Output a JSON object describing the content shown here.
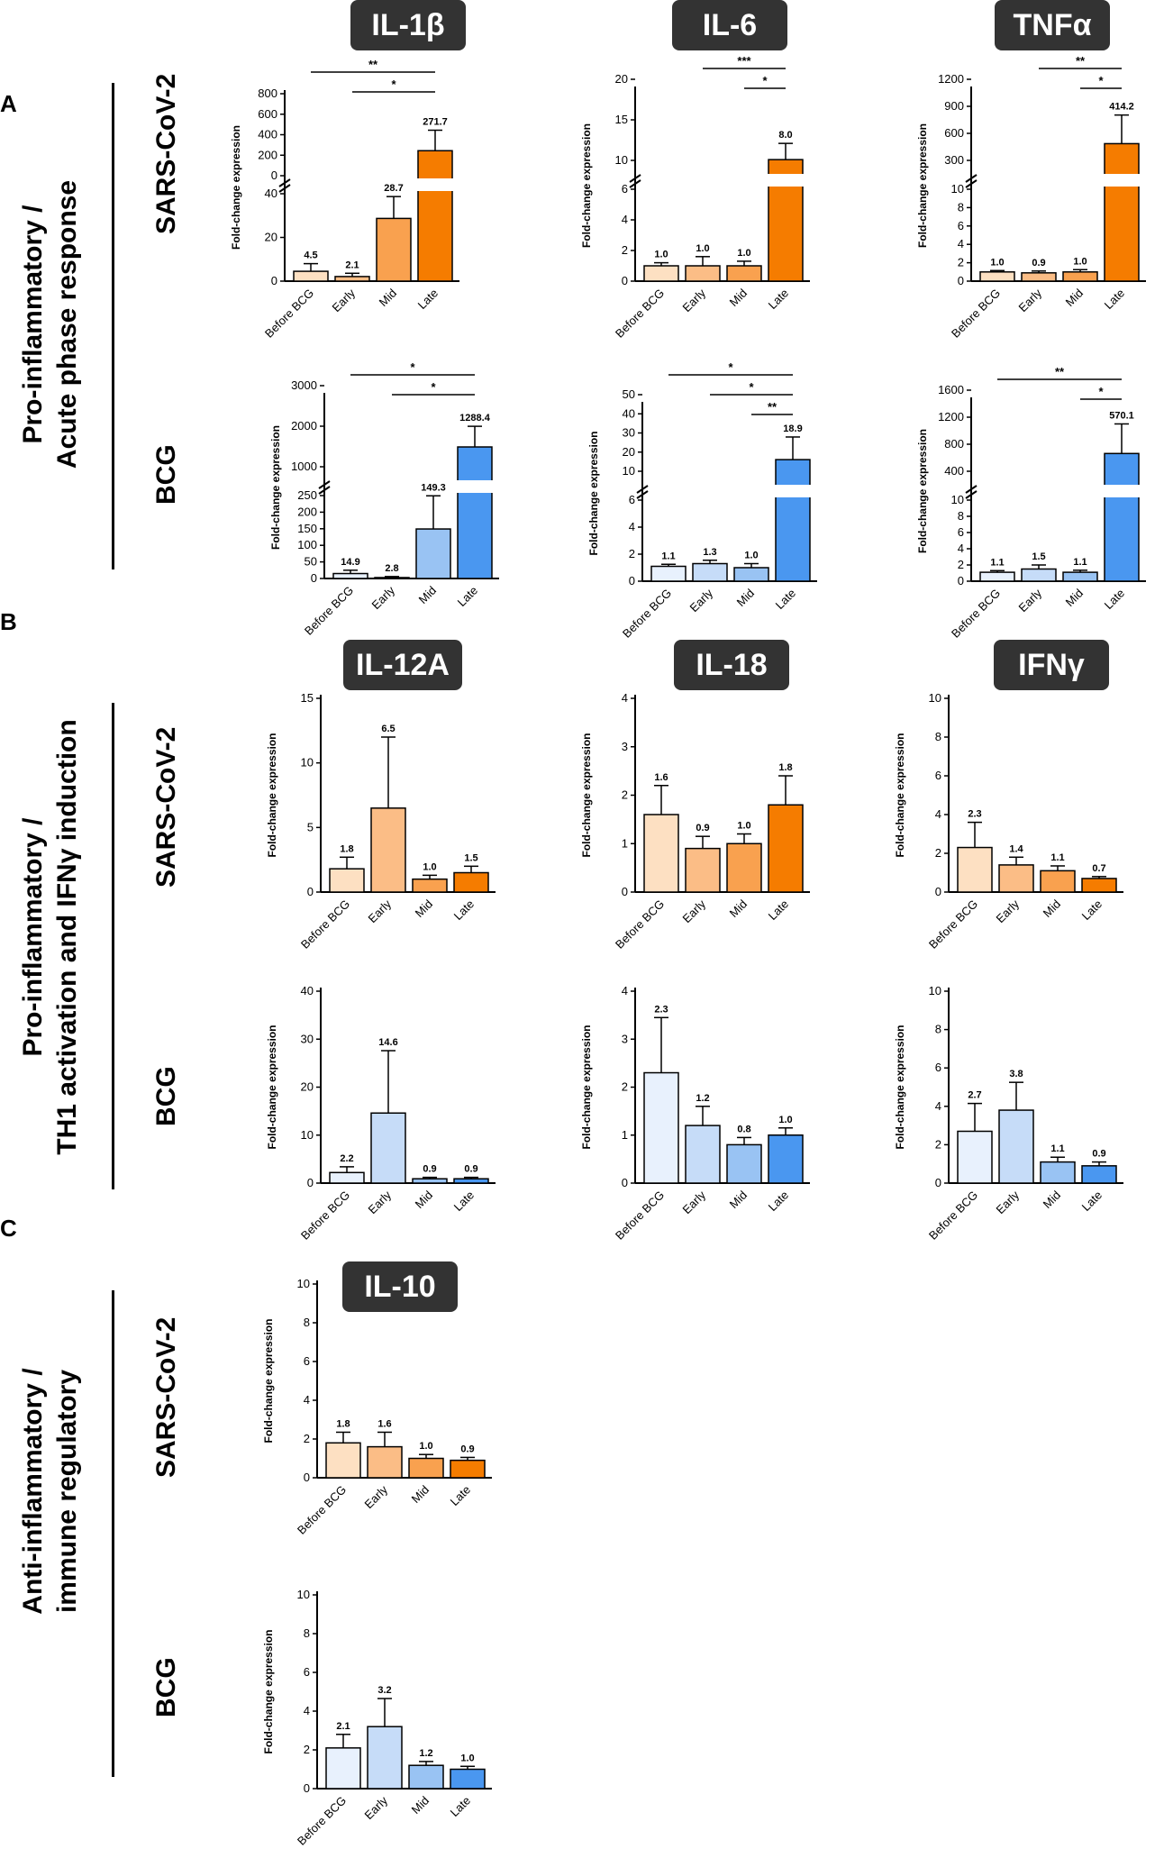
{
  "sections": [
    {
      "letter": "A",
      "group_lines": [
        "Pro-inflammatory /",
        "Acute phase response"
      ]
    },
    {
      "letter": "B",
      "group_lines": [
        "Pro-inflammatory /",
        "TH1 activation and IFNγ induction"
      ]
    },
    {
      "letter": "C",
      "group_lines": [
        "Anti-inflammatory  /",
        "immune regulatory"
      ]
    }
  ],
  "rows": [
    "SARS-CoV-2",
    "BCG",
    "SARS-CoV-2",
    "BCG",
    "SARS-CoV-2",
    "BCG"
  ],
  "cytokines": [
    "IL-1β",
    "IL-6",
    "TNFα",
    "IL-12A",
    "IL-18",
    "IFNγ",
    "IL-10"
  ],
  "colors": {
    "sars": [
      "#fde0c2",
      "#fbbd86",
      "#f9a14f",
      "#f57c00"
    ],
    "bcg": [
      "#e8f1fd",
      "#c6dcf8",
      "#99c3f3",
      "#4a97f0"
    ]
  },
  "chart_data": [
    {
      "type": "bar",
      "id": "il1b-sars",
      "cytokine": "IL-1β",
      "title": "",
      "stimulus": "SARS-CoV-2",
      "ylabel": "Fold-change expression",
      "categories": [
        "Before BCG",
        "Early",
        "Mid",
        "Late"
      ],
      "values": [
        4.5,
        2.1,
        28.7,
        271.7
      ],
      "errors": [
        3.5,
        1.5,
        10,
        190
      ],
      "labels": [
        "4.5",
        "2.1",
        "28.7",
        "271.7"
      ],
      "axis_break": {
        "lower": [
          0,
          40
        ],
        "upper": [
          0,
          800
        ]
      },
      "yticks_lower": [
        "0",
        "20",
        "40"
      ],
      "yticks_upper": [
        "0",
        "200",
        "400",
        "600",
        "800"
      ],
      "significance": [
        {
          "from": "Before BCG",
          "to": "Late",
          "label": "**"
        },
        {
          "from": "Early",
          "to": "Late",
          "label": "*"
        }
      ]
    },
    {
      "type": "bar",
      "id": "il6-sars",
      "cytokine": "IL-6",
      "title": "",
      "stimulus": "SARS-CoV-2",
      "ylabel": "Fold-change expression",
      "categories": [
        "Before BCG",
        "Early",
        "Mid",
        "Late"
      ],
      "values": [
        1.0,
        1.0,
        1.0,
        8.0
      ],
      "errors": [
        0.2,
        0.6,
        0.3,
        2.8
      ],
      "labels": [
        "1.0",
        "1.0",
        "1.0",
        "8.0"
      ],
      "axis_break": {
        "lower": [
          0,
          6
        ],
        "upper": [
          0,
          20
        ]
      },
      "yticks_lower": [
        "0",
        "2",
        "4",
        "6"
      ],
      "yticks_upper": [
        "10",
        "15",
        "20"
      ],
      "significance": [
        {
          "from": "Early",
          "to": "Late",
          "label": "***"
        },
        {
          "from": "Mid",
          "to": "Late",
          "label": "*"
        }
      ]
    },
    {
      "type": "bar",
      "id": "tnfa-sars",
      "cytokine": "TNFα",
      "title": "",
      "stimulus": "SARS-CoV-2",
      "ylabel": "Fold-change expression",
      "categories": [
        "Before BCG",
        "Early",
        "Mid",
        "Late"
      ],
      "values": [
        1.0,
        0.9,
        1.0,
        414.2
      ],
      "errors": [
        0.15,
        0.2,
        0.25,
        420
      ],
      "labels": [
        "1.0",
        "0.9",
        "1.0",
        "414.2"
      ],
      "axis_break": {
        "lower": [
          0,
          10
        ],
        "upper": [
          0,
          1200
        ]
      },
      "yticks_lower": [
        "0",
        "2",
        "4",
        "6",
        "8",
        "10"
      ],
      "yticks_upper": [
        "300",
        "600",
        "900",
        "1200"
      ],
      "significance": [
        {
          "from": "Early",
          "to": "Late",
          "label": "**"
        },
        {
          "from": "Mid",
          "to": "Late",
          "label": "*"
        }
      ]
    },
    {
      "type": "bar",
      "id": "il1b-bcg",
      "cytokine": "IL-1β",
      "title": "",
      "stimulus": "BCG",
      "ylabel": "Fold-change expression",
      "categories": [
        "Before BCG",
        "Early",
        "Mid",
        "Late"
      ],
      "values": [
        14.9,
        2.8,
        149.3,
        1288.4
      ],
      "errors": [
        10,
        3,
        100,
        700
      ],
      "labels": [
        "14.9",
        "2.8",
        "149.3",
        "1288.4"
      ],
      "axis_break": {
        "lower": [
          0,
          250
        ],
        "upper": [
          0,
          3000
        ]
      },
      "yticks_lower": [
        "0",
        "50",
        "100",
        "150",
        "200",
        "250"
      ],
      "yticks_upper": [
        "1000",
        "2000",
        "3000"
      ],
      "significance": [
        {
          "from": "Before BCG",
          "to": "Late",
          "label": "*"
        },
        {
          "from": "Early",
          "to": "Late",
          "label": "*"
        }
      ]
    },
    {
      "type": "bar",
      "id": "il6-bcg",
      "cytokine": "IL-6",
      "title": "",
      "stimulus": "BCG",
      "ylabel": "Fold-change expression",
      "categories": [
        "Before BCG",
        "Early",
        "Mid",
        "Late"
      ],
      "values": [
        1.1,
        1.3,
        1.0,
        18.9
      ],
      "errors": [
        0.15,
        0.25,
        0.3,
        13
      ],
      "labels": [
        "1.1",
        "1.3",
        "1.0",
        "18.9"
      ],
      "axis_break": {
        "lower": [
          0,
          6
        ],
        "upper": [
          0,
          50
        ]
      },
      "yticks_lower": [
        "0",
        "2",
        "4",
        "6"
      ],
      "yticks_upper": [
        "10",
        "20",
        "30",
        "40",
        "50"
      ],
      "significance": [
        {
          "from": "Before BCG",
          "to": "Late",
          "label": "*"
        },
        {
          "from": "Early",
          "to": "Late",
          "label": "*"
        },
        {
          "from": "Mid",
          "to": "Late",
          "label": "**"
        }
      ]
    },
    {
      "type": "bar",
      "id": "tnfa-bcg",
      "cytokine": "TNFα",
      "title": "",
      "stimulus": "BCG",
      "ylabel": "Fold-change expression",
      "categories": [
        "Before BCG",
        "Early",
        "Mid",
        "Late"
      ],
      "values": [
        1.1,
        1.5,
        1.1,
        570.1
      ],
      "errors": [
        0.2,
        0.5,
        0.25,
        580
      ],
      "labels": [
        "1.1",
        "1.5",
        "1.1",
        "570.1"
      ],
      "axis_break": {
        "lower": [
          0,
          10
        ],
        "upper": [
          0,
          1600
        ]
      },
      "yticks_lower": [
        "0",
        "2",
        "4",
        "6",
        "8",
        "10"
      ],
      "yticks_upper": [
        "400",
        "800",
        "1200",
        "1600"
      ],
      "significance": [
        {
          "from": "Before BCG",
          "to": "Late",
          "label": "**"
        },
        {
          "from": "Mid",
          "to": "Late",
          "label": "*"
        }
      ]
    },
    {
      "type": "bar",
      "id": "il12a-sars",
      "cytokine": "IL-12A",
      "title": "",
      "stimulus": "SARS-CoV-2",
      "ylabel": "Fold-change expression",
      "categories": [
        "Before BCG",
        "Early",
        "Mid",
        "Late"
      ],
      "values": [
        1.8,
        6.5,
        1.0,
        1.5
      ],
      "errors": [
        0.9,
        5.5,
        0.3,
        0.5
      ],
      "labels": [
        "1.8",
        "6.5",
        "1.0",
        "1.5"
      ],
      "ylim": [
        0,
        15
      ],
      "yticks": [
        "0",
        "5",
        "10",
        "15"
      ],
      "significance": []
    },
    {
      "type": "bar",
      "id": "il18-sars",
      "cytokine": "IL-18",
      "title": "",
      "stimulus": "SARS-CoV-2",
      "ylabel": "Fold-change expression",
      "categories": [
        "Before BCG",
        "Early",
        "Mid",
        "Late"
      ],
      "values": [
        1.6,
        0.9,
        1.0,
        1.8
      ],
      "errors": [
        0.6,
        0.25,
        0.2,
        0.6
      ],
      "labels": [
        "1.6",
        "0.9",
        "1.0",
        "1.8"
      ],
      "ylim": [
        0,
        4
      ],
      "yticks": [
        "0",
        "1",
        "2",
        "3",
        "4"
      ],
      "significance": []
    },
    {
      "type": "bar",
      "id": "ifng-sars",
      "cytokine": "IFNγ",
      "title": "",
      "stimulus": "SARS-CoV-2",
      "ylabel": "Fold-change expression",
      "categories": [
        "Before BCG",
        "Early",
        "Mid",
        "Late"
      ],
      "values": [
        2.3,
        1.4,
        1.1,
        0.7
      ],
      "errors": [
        1.3,
        0.4,
        0.25,
        0.1
      ],
      "labels": [
        "2.3",
        "1.4",
        "1.1",
        "0.7"
      ],
      "ylim": [
        0,
        10
      ],
      "yticks": [
        "0",
        "2",
        "4",
        "6",
        "8",
        "10"
      ],
      "significance": []
    },
    {
      "type": "bar",
      "id": "il12a-bcg",
      "cytokine": "IL-12A",
      "title": "",
      "stimulus": "BCG",
      "ylabel": "Fold-change expression",
      "categories": [
        "Before BCG",
        "Early",
        "Mid",
        "Late"
      ],
      "values": [
        2.2,
        14.6,
        0.9,
        0.9
      ],
      "errors": [
        1.2,
        13,
        0.3,
        0.3
      ],
      "labels": [
        "2.2",
        "14.6",
        "0.9",
        "0.9"
      ],
      "ylim": [
        0,
        40
      ],
      "yticks": [
        "0",
        "10",
        "20",
        "30",
        "40"
      ],
      "significance": []
    },
    {
      "type": "bar",
      "id": "il18-bcg",
      "cytokine": "IL-18",
      "title": "",
      "stimulus": "BCG",
      "ylabel": "Fold-change expression",
      "categories": [
        "Before BCG",
        "Early",
        "Mid",
        "Late"
      ],
      "values": [
        2.3,
        1.2,
        0.8,
        1.0
      ],
      "errors": [
        1.15,
        0.4,
        0.15,
        0.15
      ],
      "labels": [
        "2.3",
        "1.2",
        "0.8",
        "1.0"
      ],
      "ylim": [
        0,
        4
      ],
      "yticks": [
        "0",
        "1",
        "2",
        "3",
        "4"
      ],
      "significance": []
    },
    {
      "type": "bar",
      "id": "ifng-bcg",
      "cytokine": "IFNγ",
      "title": "",
      "stimulus": "BCG",
      "ylabel": "Fold-change expression",
      "categories": [
        "Before BCG",
        "Early",
        "Mid",
        "Late"
      ],
      "values": [
        2.7,
        3.8,
        1.1,
        0.9
      ],
      "errors": [
        1.45,
        1.45,
        0.25,
        0.2
      ],
      "labels": [
        "2.7",
        "3.8",
        "1.1",
        "0.9"
      ],
      "ylim": [
        0,
        10
      ],
      "yticks": [
        "0",
        "2",
        "4",
        "6",
        "8",
        "10"
      ],
      "significance": []
    },
    {
      "type": "bar",
      "id": "il10-sars",
      "cytokine": "IL-10",
      "title": "",
      "stimulus": "SARS-CoV-2",
      "ylabel": "Fold-change expression",
      "categories": [
        "Before BCG",
        "Early",
        "Mid",
        "Late"
      ],
      "values": [
        1.8,
        1.6,
        1.0,
        0.9
      ],
      "errors": [
        0.55,
        0.75,
        0.2,
        0.15
      ],
      "labels": [
        "1.8",
        "1.6",
        "1.0",
        "0.9"
      ],
      "ylim": [
        0,
        10
      ],
      "yticks": [
        "0",
        "2",
        "4",
        "6",
        "8",
        "10"
      ],
      "significance": []
    },
    {
      "type": "bar",
      "id": "il10-bcg",
      "cytokine": "IL-10",
      "title": "",
      "stimulus": "BCG",
      "ylabel": "Fold-change expression",
      "categories": [
        "Before BCG",
        "Early",
        "Mid",
        "Late"
      ],
      "values": [
        2.1,
        3.2,
        1.2,
        1.0
      ],
      "errors": [
        0.7,
        1.45,
        0.2,
        0.15
      ],
      "labels": [
        "2.1",
        "3.2",
        "1.2",
        "1.0"
      ],
      "ylim": [
        0,
        10
      ],
      "yticks": [
        "0",
        "2",
        "4",
        "6",
        "8",
        "10"
      ],
      "significance": []
    }
  ]
}
